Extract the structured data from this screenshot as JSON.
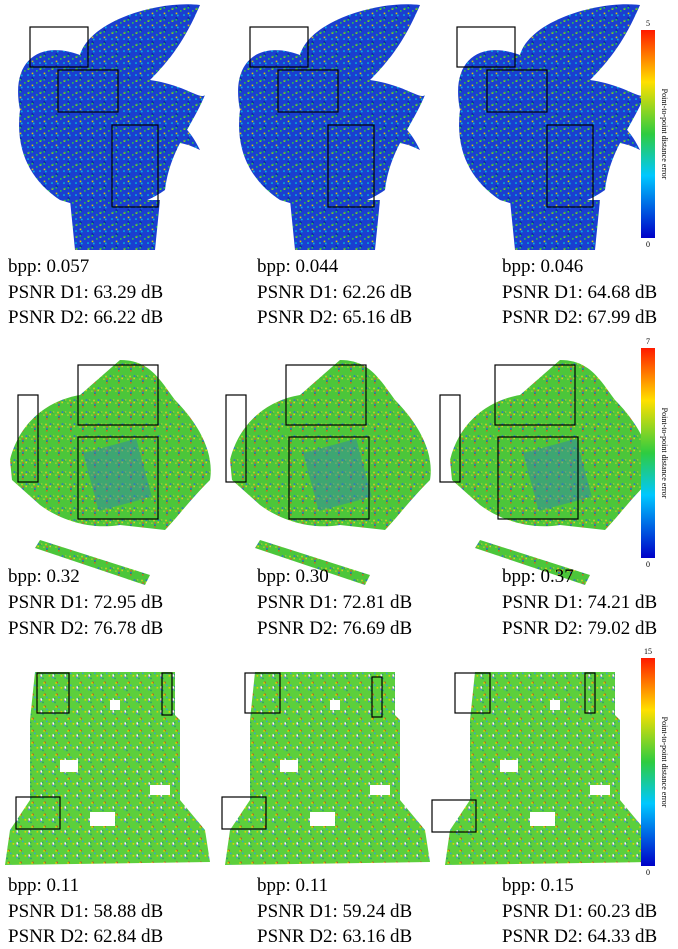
{
  "rows": [
    {
      "colorbar": {
        "max": "5",
        "min": "0",
        "label": "Point-to-point distance error"
      },
      "panels": [
        {
          "bpp": "bpp: 0.057",
          "d1": "PSNR D1: 63.29 dB",
          "d2": "PSNR D2: 66.22 dB"
        },
        {
          "bpp": "bpp: 0.044",
          "d1": "PSNR D1: 62.26 dB",
          "d2": "PSNR D2: 65.16 dB"
        },
        {
          "bpp": "bpp: 0.046",
          "d1": "PSNR D1: 64.68 dB",
          "d2": "PSNR D2: 67.99 dB"
        }
      ]
    },
    {
      "colorbar": {
        "max": "7",
        "min": "0",
        "label": "Point-to-point distance error"
      },
      "panels": [
        {
          "bpp": "bpp: 0.32",
          "d1": "PSNR D1: 72.95 dB",
          "d2": "PSNR D2: 76.78 dB"
        },
        {
          "bpp": "bpp: 0.30",
          "d1": "PSNR D1: 72.81 dB",
          "d2": "PSNR D2: 76.69 dB"
        },
        {
          "bpp": "bpp: 0.37",
          "d1": "PSNR D1: 74.21 dB",
          "d2": "PSNR D2: 79.02 dB"
        }
      ]
    },
    {
      "colorbar": {
        "max": "15",
        "min": "0",
        "label": "Point-to-point distance error"
      },
      "panels": [
        {
          "bpp": "bpp: 0.11",
          "d1": "PSNR D1: 58.88 dB",
          "d2": "PSNR D2: 62.84 dB"
        },
        {
          "bpp": "bpp: 0.11",
          "d1": "PSNR D1: 59.24 dB",
          "d2": "PSNR D2: 63.16 dB"
        },
        {
          "bpp": "bpp: 0.15",
          "d1": "PSNR D1: 60.23 dB",
          "d2": "PSNR D2: 64.33 dB"
        }
      ]
    }
  ]
}
